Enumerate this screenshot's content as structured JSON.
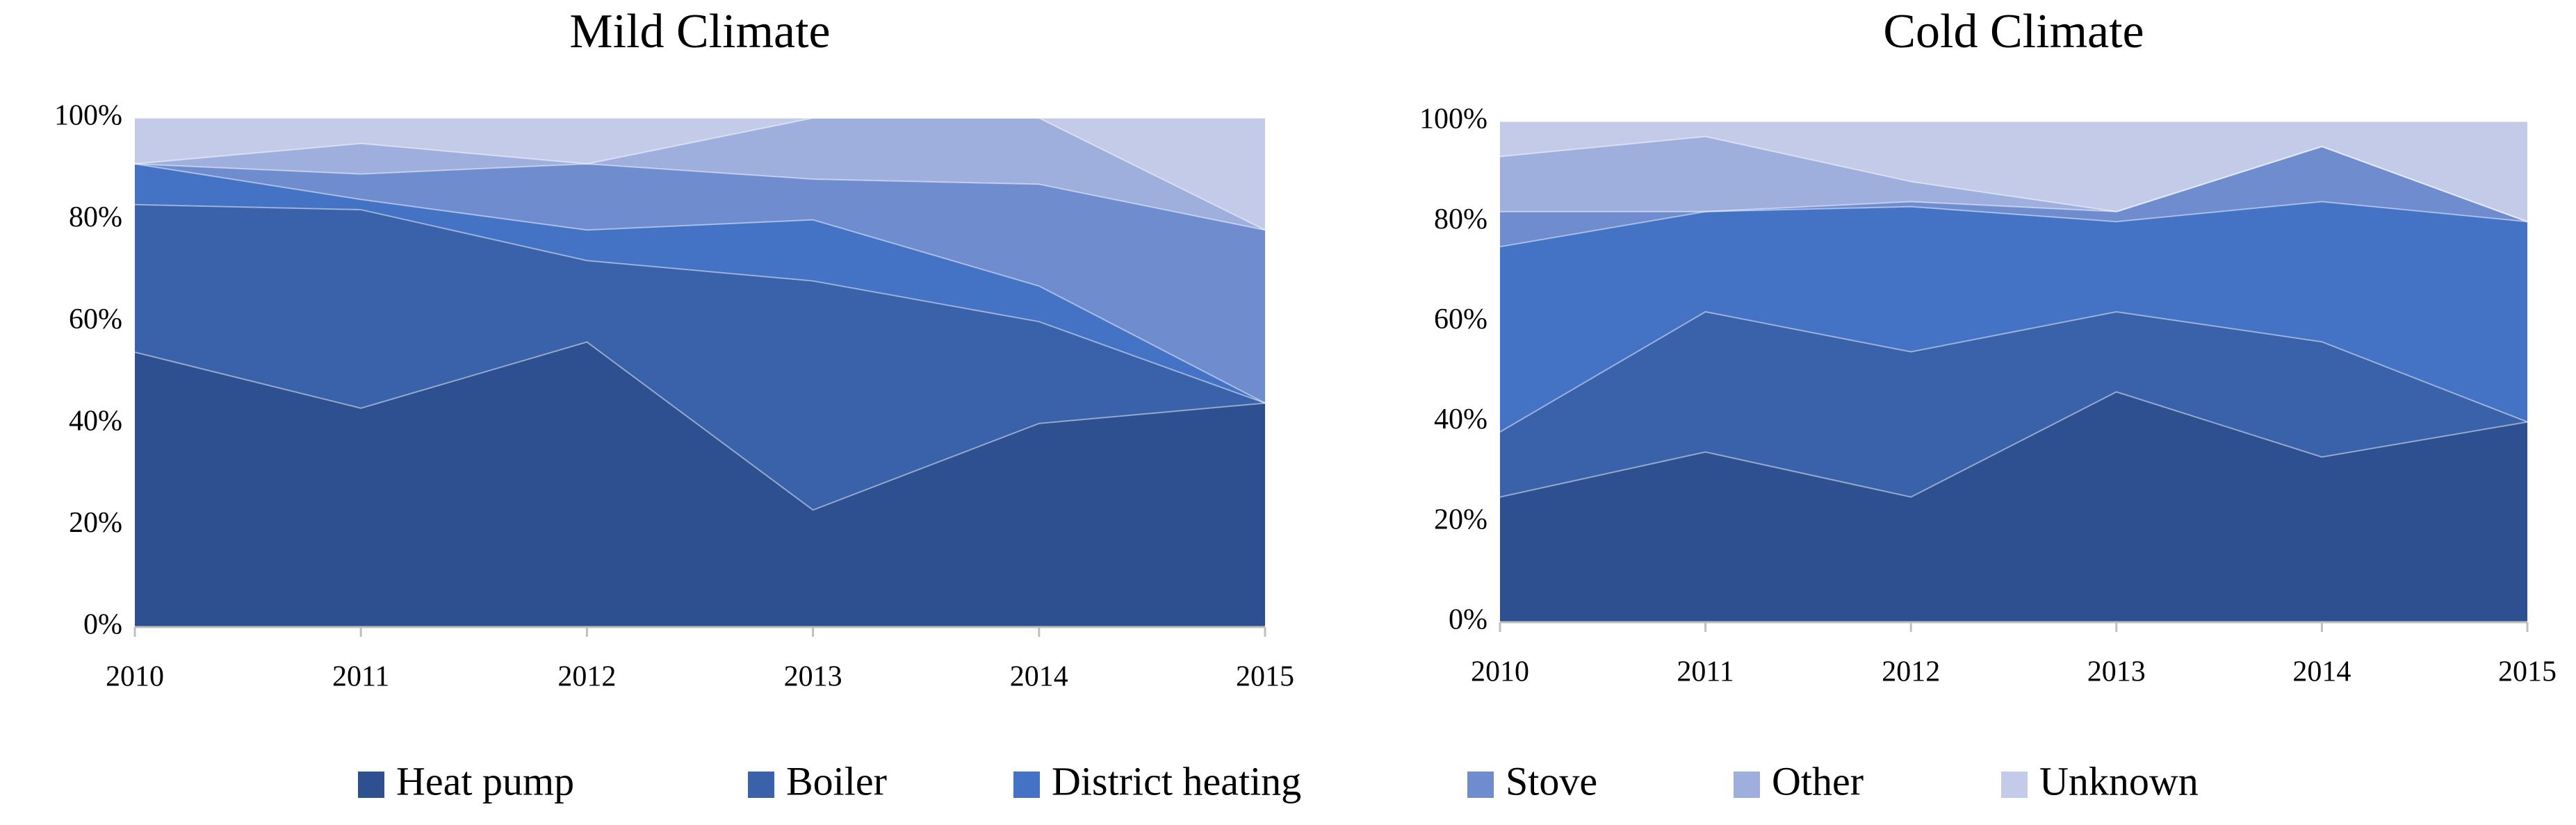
{
  "chart_data": [
    {
      "type": "stacked-area",
      "title": "Mild Climate",
      "x": [
        2010,
        2011,
        2012,
        2013,
        2014,
        2015
      ],
      "xlim": [
        2010,
        2015
      ],
      "xticks": [
        2010,
        2011,
        2012,
        2013,
        2014,
        2015
      ],
      "ylim": [
        0,
        100
      ],
      "yticks": [
        {
          "value": 0,
          "label": "0%"
        },
        {
          "value": 20,
          "label": "20%"
        },
        {
          "value": 40,
          "label": "40%"
        },
        {
          "value": 60,
          "label": "60%"
        },
        {
          "value": 80,
          "label": "80%"
        },
        {
          "value": 100,
          "label": "100%"
        }
      ],
      "series": [
        {
          "name": "Heat pump",
          "color": "#2e5090",
          "values": [
            54,
            43,
            56,
            23,
            40,
            44
          ]
        },
        {
          "name": "Boiler",
          "color": "#3a62ab",
          "values": [
            29,
            39,
            16,
            45,
            20,
            0
          ]
        },
        {
          "name": "District heating",
          "color": "#4472c4",
          "values": [
            8,
            2,
            6,
            12,
            7,
            0
          ]
        },
        {
          "name": "Stove",
          "color": "#6f8ccf",
          "values": [
            0,
            5,
            13,
            8,
            20,
            34
          ]
        },
        {
          "name": "Other",
          "color": "#9eaedd",
          "values": [
            0,
            6,
            0,
            12,
            13,
            0
          ]
        },
        {
          "name": "Unknown",
          "color": "#c3cbe8",
          "values": [
            9,
            5,
            9,
            0,
            0,
            22
          ]
        }
      ]
    },
    {
      "type": "stacked-area",
      "title": "Cold Climate",
      "x": [
        2010,
        2011,
        2012,
        2013,
        2014,
        2015
      ],
      "xlim": [
        2010,
        2015
      ],
      "xticks": [
        2010,
        2011,
        2012,
        2013,
        2014,
        2015
      ],
      "ylim": [
        0,
        100
      ],
      "yticks": [
        {
          "value": 0,
          "label": "0%"
        },
        {
          "value": 20,
          "label": "20%"
        },
        {
          "value": 40,
          "label": "40%"
        },
        {
          "value": 60,
          "label": "60%"
        },
        {
          "value": 80,
          "label": "80%"
        },
        {
          "value": 100,
          "label": "100%"
        }
      ],
      "series": [
        {
          "name": "Heat pump",
          "color": "#2e5090",
          "values": [
            25,
            34,
            25,
            46,
            33,
            40
          ]
        },
        {
          "name": "Boiler",
          "color": "#3a62ab",
          "values": [
            13,
            28,
            29,
            16,
            23,
            0
          ]
        },
        {
          "name": "District heating",
          "color": "#4472c4",
          "values": [
            37,
            20,
            29,
            18,
            28,
            40
          ]
        },
        {
          "name": "Stove",
          "color": "#6f8ccf",
          "values": [
            7,
            0,
            1,
            2,
            11,
            0
          ]
        },
        {
          "name": "Other",
          "color": "#9eaedd",
          "values": [
            11,
            15,
            4,
            0,
            0,
            0
          ]
        },
        {
          "name": "Unknown",
          "color": "#c3cbe8",
          "values": [
            7,
            3,
            12,
            18,
            5,
            20
          ]
        }
      ]
    }
  ]
}
